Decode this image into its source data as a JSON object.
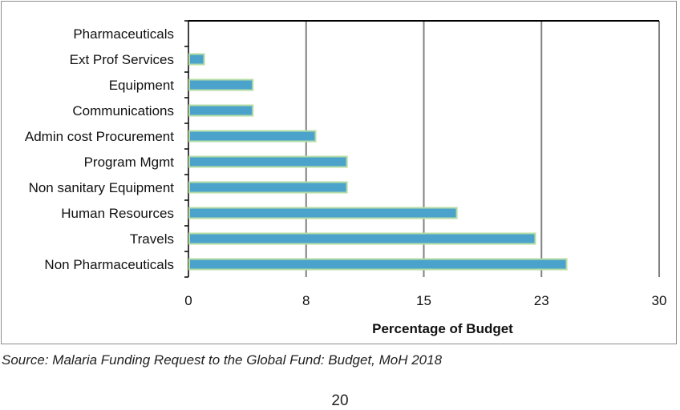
{
  "chart_data": {
    "type": "bar",
    "orientation": "horizontal",
    "title": "",
    "xlabel": "Percentage of Budget",
    "ylabel": "",
    "categories": [
      "Pharmaceuticals",
      "Ext Prof Services",
      "Equipment",
      "Communications",
      "Admin cost Procurement",
      "Program Mgmt",
      "Non sanitary Equipment",
      "Human Resources",
      "Travels",
      "Non Pharmaceuticals"
    ],
    "values": [
      0,
      1.0,
      4.1,
      4.1,
      8.1,
      10.1,
      10.1,
      17.1,
      22.1,
      24.1
    ],
    "xlim": [
      0,
      30
    ],
    "xticks": [
      0,
      7.5,
      15,
      22.5,
      30
    ],
    "xtick_labels": [
      "0",
      "8",
      "15",
      "23",
      "30"
    ],
    "grid": "vertical",
    "legend": "none",
    "colors": {
      "bar_fill": "#4ba3cb",
      "bar_edge": "#b5dca5",
      "grid": "#808080",
      "axis": "#000000"
    }
  },
  "source": "Source: Malaria Funding Request to the Global Fund: Budget, MoH 2018",
  "page_number": "20"
}
